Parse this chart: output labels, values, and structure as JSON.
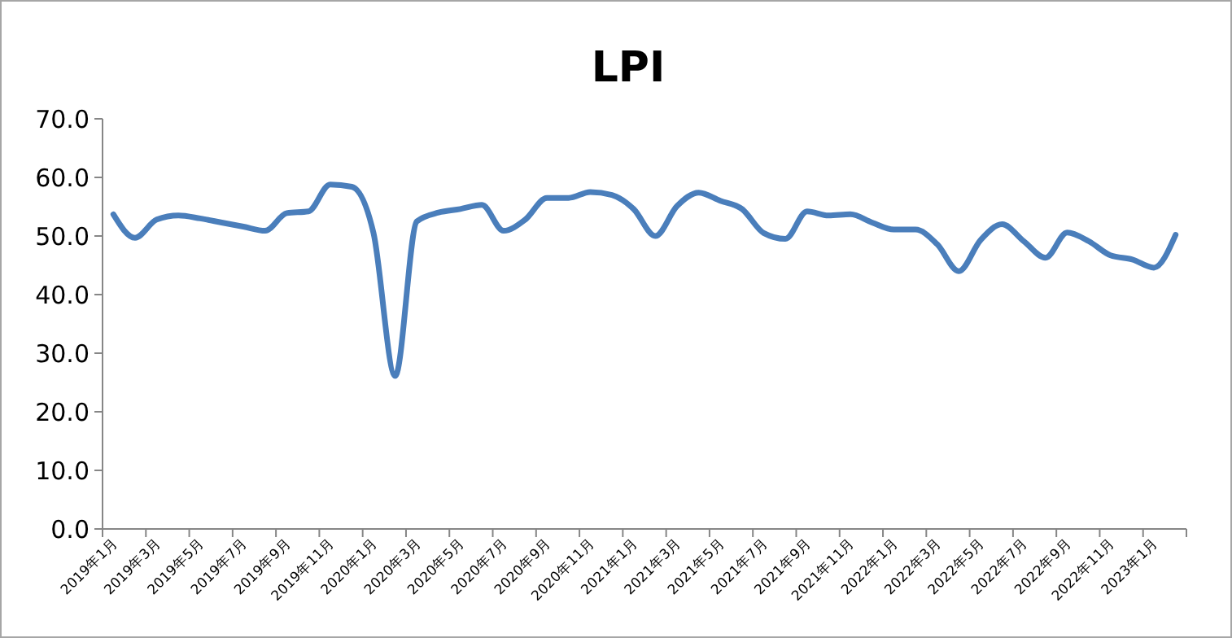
{
  "chart_data": {
    "type": "line",
    "title": "LPI",
    "categories": [
      "2019年1月",
      null,
      "2019年3月",
      null,
      "2019年5月",
      null,
      "2019年7月",
      null,
      "2019年9月",
      null,
      "2019年11月",
      null,
      "2020年1月",
      null,
      "2020年3月",
      null,
      "2020年5月",
      null,
      "2020年7月",
      null,
      "2020年9月",
      null,
      "2020年11月",
      null,
      "2021年1月",
      null,
      "2021年3月",
      null,
      "2021年5月",
      null,
      "2021年7月",
      null,
      "2021年9月",
      null,
      "2021年11月",
      null,
      "2022年1月",
      null,
      "2022年3月",
      null,
      "2022年5月",
      null,
      "2022年7月",
      null,
      "2022年9月",
      null,
      "2022年11月",
      null,
      "2023年1月",
      null
    ],
    "series": [
      {
        "color": "#4a7ebb",
        "values": [
          53.7,
          49.7,
          52.8,
          53.5,
          53.0,
          52.3,
          51.6,
          50.9,
          53.9,
          54.2,
          58.8,
          58.4,
          50.5,
          26.1,
          52.5,
          54.0,
          54.6,
          55.3,
          50.9,
          52.8,
          56.5,
          56.5,
          57.5,
          57.0,
          54.6,
          50.0,
          55.1,
          57.4,
          56.0,
          54.6,
          50.5,
          49.5,
          54.2,
          53.5,
          53.7,
          52.3,
          51.1,
          51.1,
          48.6,
          44.0,
          49.3,
          52.0,
          49.1,
          46.3,
          50.6,
          49.1,
          46.7,
          46.0,
          44.6,
          50.2
        ]
      }
    ],
    "ylim": [
      0,
      70
    ],
    "yticks": [
      {
        "value": 0,
        "label": "0.0"
      },
      {
        "value": 10,
        "label": "10.0"
      },
      {
        "value": 20,
        "label": "20.0"
      },
      {
        "value": 30,
        "label": "30.0"
      },
      {
        "value": 40,
        "label": "40.0"
      },
      {
        "value": 50,
        "label": "50.0"
      },
      {
        "value": 60,
        "label": "60.0"
      },
      {
        "value": 70,
        "label": "70.0"
      }
    ],
    "grid": false,
    "marker": "none",
    "line_style": "solid"
  }
}
